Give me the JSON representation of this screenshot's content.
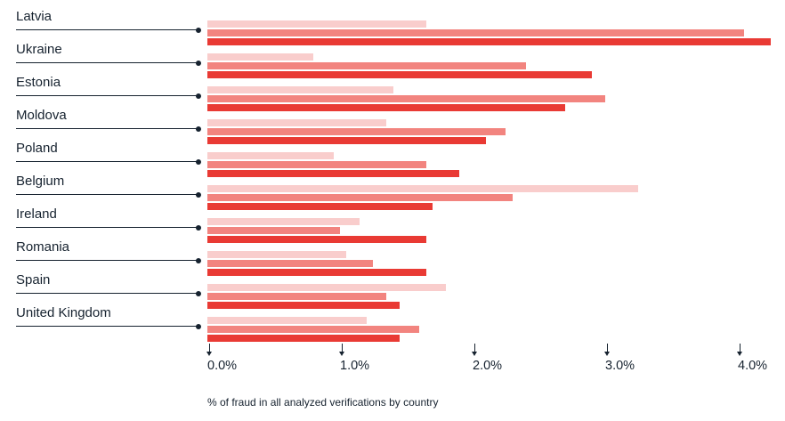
{
  "chart_data": {
    "type": "bar",
    "orientation": "horizontal",
    "title": "",
    "xlabel": "% of fraud in all analyzed verifications by country",
    "x_ticks": [
      "0.0%",
      "1.0%",
      "2.0%",
      "3.0%",
      "4.0%"
    ],
    "x_tick_values": [
      0,
      1,
      2,
      3,
      4
    ],
    "xlim": [
      0,
      4.35
    ],
    "grid": false,
    "legend": false,
    "categories": [
      "Latvia",
      "Ukraine",
      "Estonia",
      "Moldova",
      "Poland",
      "Belgium",
      "Ireland",
      "Romania",
      "Spain",
      "United Kingdom"
    ],
    "series": [
      {
        "name": "series-1-light",
        "color": "#f9cdcc",
        "values": [
          1.65,
          0.8,
          1.4,
          1.35,
          0.95,
          3.25,
          1.15,
          1.05,
          1.8,
          1.2
        ]
      },
      {
        "name": "series-2-medium",
        "color": "#f2847f",
        "values": [
          4.05,
          2.4,
          3.0,
          2.25,
          1.65,
          2.3,
          1.0,
          1.25,
          1.35,
          1.6
        ]
      },
      {
        "name": "series-3-red",
        "color": "#e93a34",
        "values": [
          4.25,
          2.9,
          2.7,
          2.1,
          1.9,
          1.7,
          1.65,
          1.65,
          1.45,
          1.45
        ]
      }
    ]
  },
  "colors": {
    "text": "#16222f",
    "axis": "#16222f",
    "background": "#ffffff"
  }
}
